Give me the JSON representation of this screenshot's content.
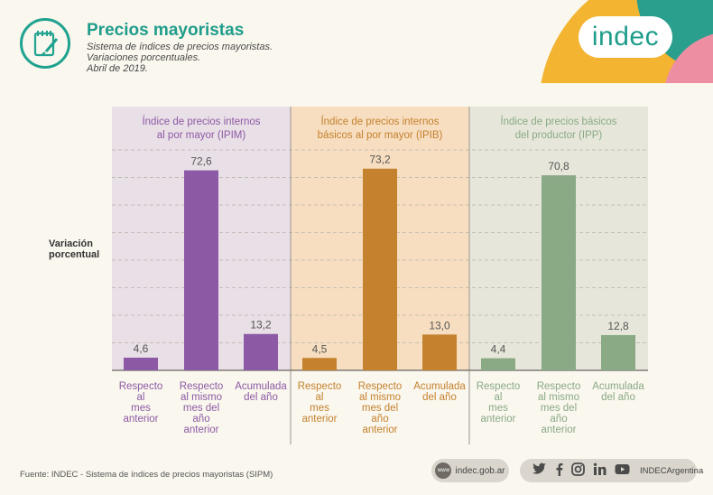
{
  "header": {
    "title": "Precios mayoristas",
    "subtitle_lines": [
      "Sistema de índices de precios mayoristas.",
      "Variaciones porcentuales.",
      "Abril de 2019."
    ]
  },
  "logo": {
    "text": "indec"
  },
  "colors": {
    "teal": "#1f9d8b",
    "ipim": "#8c5aa5",
    "ipib": "#c4812e",
    "ipp": "#8aa985",
    "ipim_bg": "#e9dfe6",
    "ipib_bg": "#f7dec0",
    "ipp_bg": "#e6e7da",
    "deco_yellow": "#f2b431",
    "deco_teal": "#2a9f8e",
    "deco_pink": "#ee8ea2"
  },
  "yaxis_label_lines": [
    "Variación",
    "porcentual"
  ],
  "chart_data": {
    "type": "bar",
    "ylim": [
      0,
      80
    ],
    "grid": true,
    "xlabel": "",
    "ylabel": "Variación porcentual",
    "panels": [
      {
        "name_lines": [
          "Índice de precios internos",
          "al por mayor (IPIM)"
        ],
        "color": "#8c5aa5",
        "categories": [
          [
            "Respecto",
            "al",
            "mes",
            "anterior"
          ],
          [
            "Respecto",
            "al mismo",
            "mes del",
            "año",
            "anterior"
          ],
          [
            "Acumulada",
            "del año"
          ]
        ],
        "values": [
          4.6,
          72.6,
          13.2
        ],
        "value_labels": [
          "4,6",
          "72,6",
          "13,2"
        ]
      },
      {
        "name_lines": [
          "Índice de precios internos",
          "básicos al por mayor (IPIB)"
        ],
        "color": "#c4812e",
        "categories": [
          [
            "Respecto",
            "al",
            "mes",
            "anterior"
          ],
          [
            "Respecto",
            "al mismo",
            "mes del",
            "año",
            "anterior"
          ],
          [
            "Acumulada",
            "del año"
          ]
        ],
        "values": [
          4.5,
          73.2,
          13.0
        ],
        "value_labels": [
          "4,5",
          "73,2",
          "13,0"
        ]
      },
      {
        "name_lines": [
          "Índice de precios básicos",
          "del productor (IPP)"
        ],
        "color": "#8aa985",
        "categories": [
          [
            "Respecto",
            "al",
            "mes",
            "anterior"
          ],
          [
            "Respecto",
            "al mismo",
            "mes del",
            "año",
            "anterior"
          ],
          [
            "Acumulada",
            "del año"
          ]
        ],
        "values": [
          4.4,
          70.8,
          12.8
        ],
        "value_labels": [
          "4,4",
          "70,8",
          "12,8"
        ]
      }
    ]
  },
  "footer": {
    "source": "Fuente: INDEC - Sistema de índices de precios mayoristas (SIPM)",
    "web_icon_text": "www",
    "web": "indec.gob.ar",
    "social_icons": [
      "twitter-icon",
      "facebook-icon",
      "instagram-icon",
      "linkedin-icon",
      "youtube-icon"
    ],
    "social_handle": "INDECArgentina"
  }
}
